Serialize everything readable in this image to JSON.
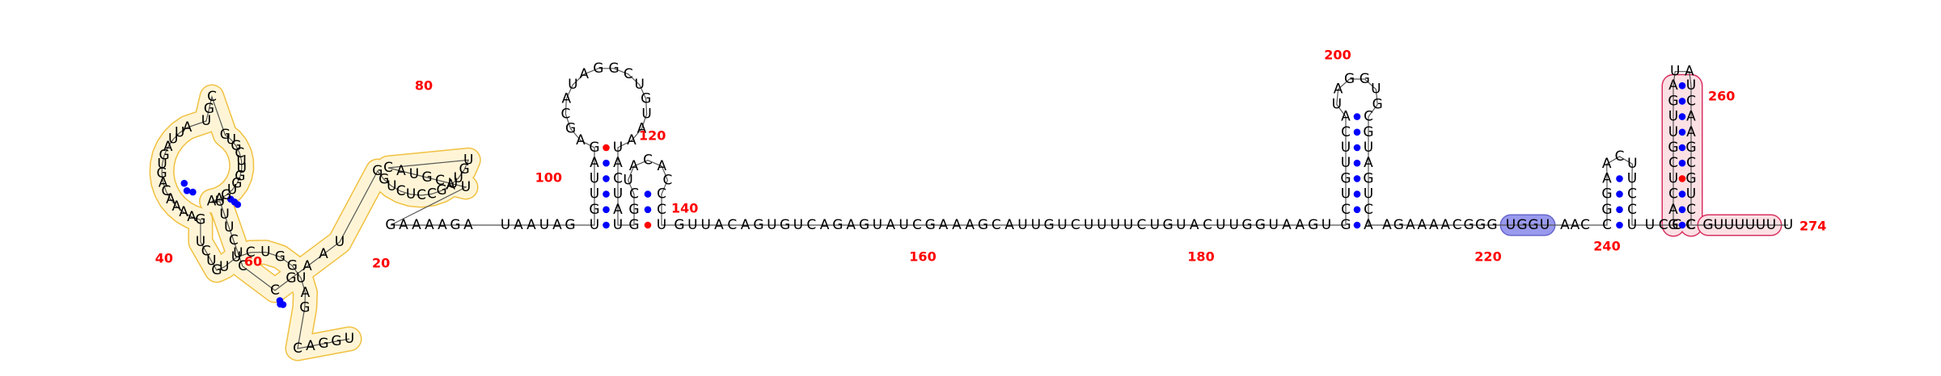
{
  "colors": {
    "nucleotide": "#000000",
    "backbone": "#555555",
    "base_pair_dot": "#0000ff",
    "gu_pair_dot": "#ff0000",
    "number_label": "#ff0000",
    "highlight_yellow_fill": "#fff5d6",
    "highlight_yellow_stroke": "#f0c040",
    "highlight_blue_fill": "#9999ee",
    "highlight_blue_stroke": "#6666cc",
    "highlight_pink_fill": "#fbe0e4",
    "highlight_pink_stroke": "#d83060"
  },
  "position_labels": [
    "20",
    "40",
    "60",
    "80",
    "100",
    "120",
    "140",
    "160",
    "180",
    "200",
    "220",
    "240",
    "260",
    "274"
  ],
  "regions": {
    "five_prime_domain": {
      "highlight": "yellow"
    },
    "terminator_loop": {
      "highlight": "pink"
    },
    "tail": {
      "highlight": "pink"
    },
    "ugu_motif": {
      "highlight": "blue",
      "sequence": "UGGU"
    }
  },
  "linear": {
    "linker1": "GAAAAGA",
    "linker2": "UAAUAG",
    "linker3": "GUUACAGUGUCAGAGUAUCGAAAGCAUUGUCUUUUCUGUACUUGGUAAGU",
    "linker4": "AGAAAACGGG",
    "motif": "UGGU",
    "linker5": "AAC",
    "linker6": "UCCC",
    "tail": "GUUUUUU",
    "tail_end": "U"
  },
  "hairpins": {
    "h1": {
      "five": "UGUUAG",
      "loop": "AGCAUAGGCUGUAA",
      "three": "UACUAU"
    },
    "h2": {
      "five": "GGC",
      "loop": "UACAC",
      "three": "CCU"
    },
    "h3": {
      "five": "GCUGUUCA",
      "loop": "UAGGUG",
      "three": "CGUAGUCA"
    },
    "h4": {
      "five": "CGGA",
      "loop": "ACU",
      "three": "UCCU"
    },
    "h5": {
      "five": "GACUCGUUGA",
      "loop": "UA",
      "three": "UCAAGCGUCC"
    }
  },
  "five_prime_domain": {
    "outer": [
      "U",
      "G",
      "G",
      "A",
      "C",
      "G",
      "A",
      "U",
      "G",
      "G",
      "U",
      "C",
      "U",
      "U",
      "G",
      "U",
      "C",
      "U",
      "G",
      "A",
      "A",
      "A",
      "A",
      "C",
      "A",
      "G",
      "U",
      "G",
      "A",
      "U",
      "U",
      "A",
      "U",
      "G",
      "C",
      "G",
      "U",
      "G",
      "C",
      "U",
      "U",
      "G",
      "G",
      "U",
      "G",
      "A",
      "A",
      "U",
      "U",
      "U",
      "C",
      "U",
      "C",
      "C",
      "G",
      "A",
      "A",
      "U",
      "G",
      "G",
      "U",
      "C",
      "U",
      "C",
      "C",
      "G",
      "A",
      "U",
      "G",
      "U"
    ],
    "inner": [
      "C",
      "A",
      "U",
      "G",
      "C",
      "U",
      "U"
    ]
  }
}
